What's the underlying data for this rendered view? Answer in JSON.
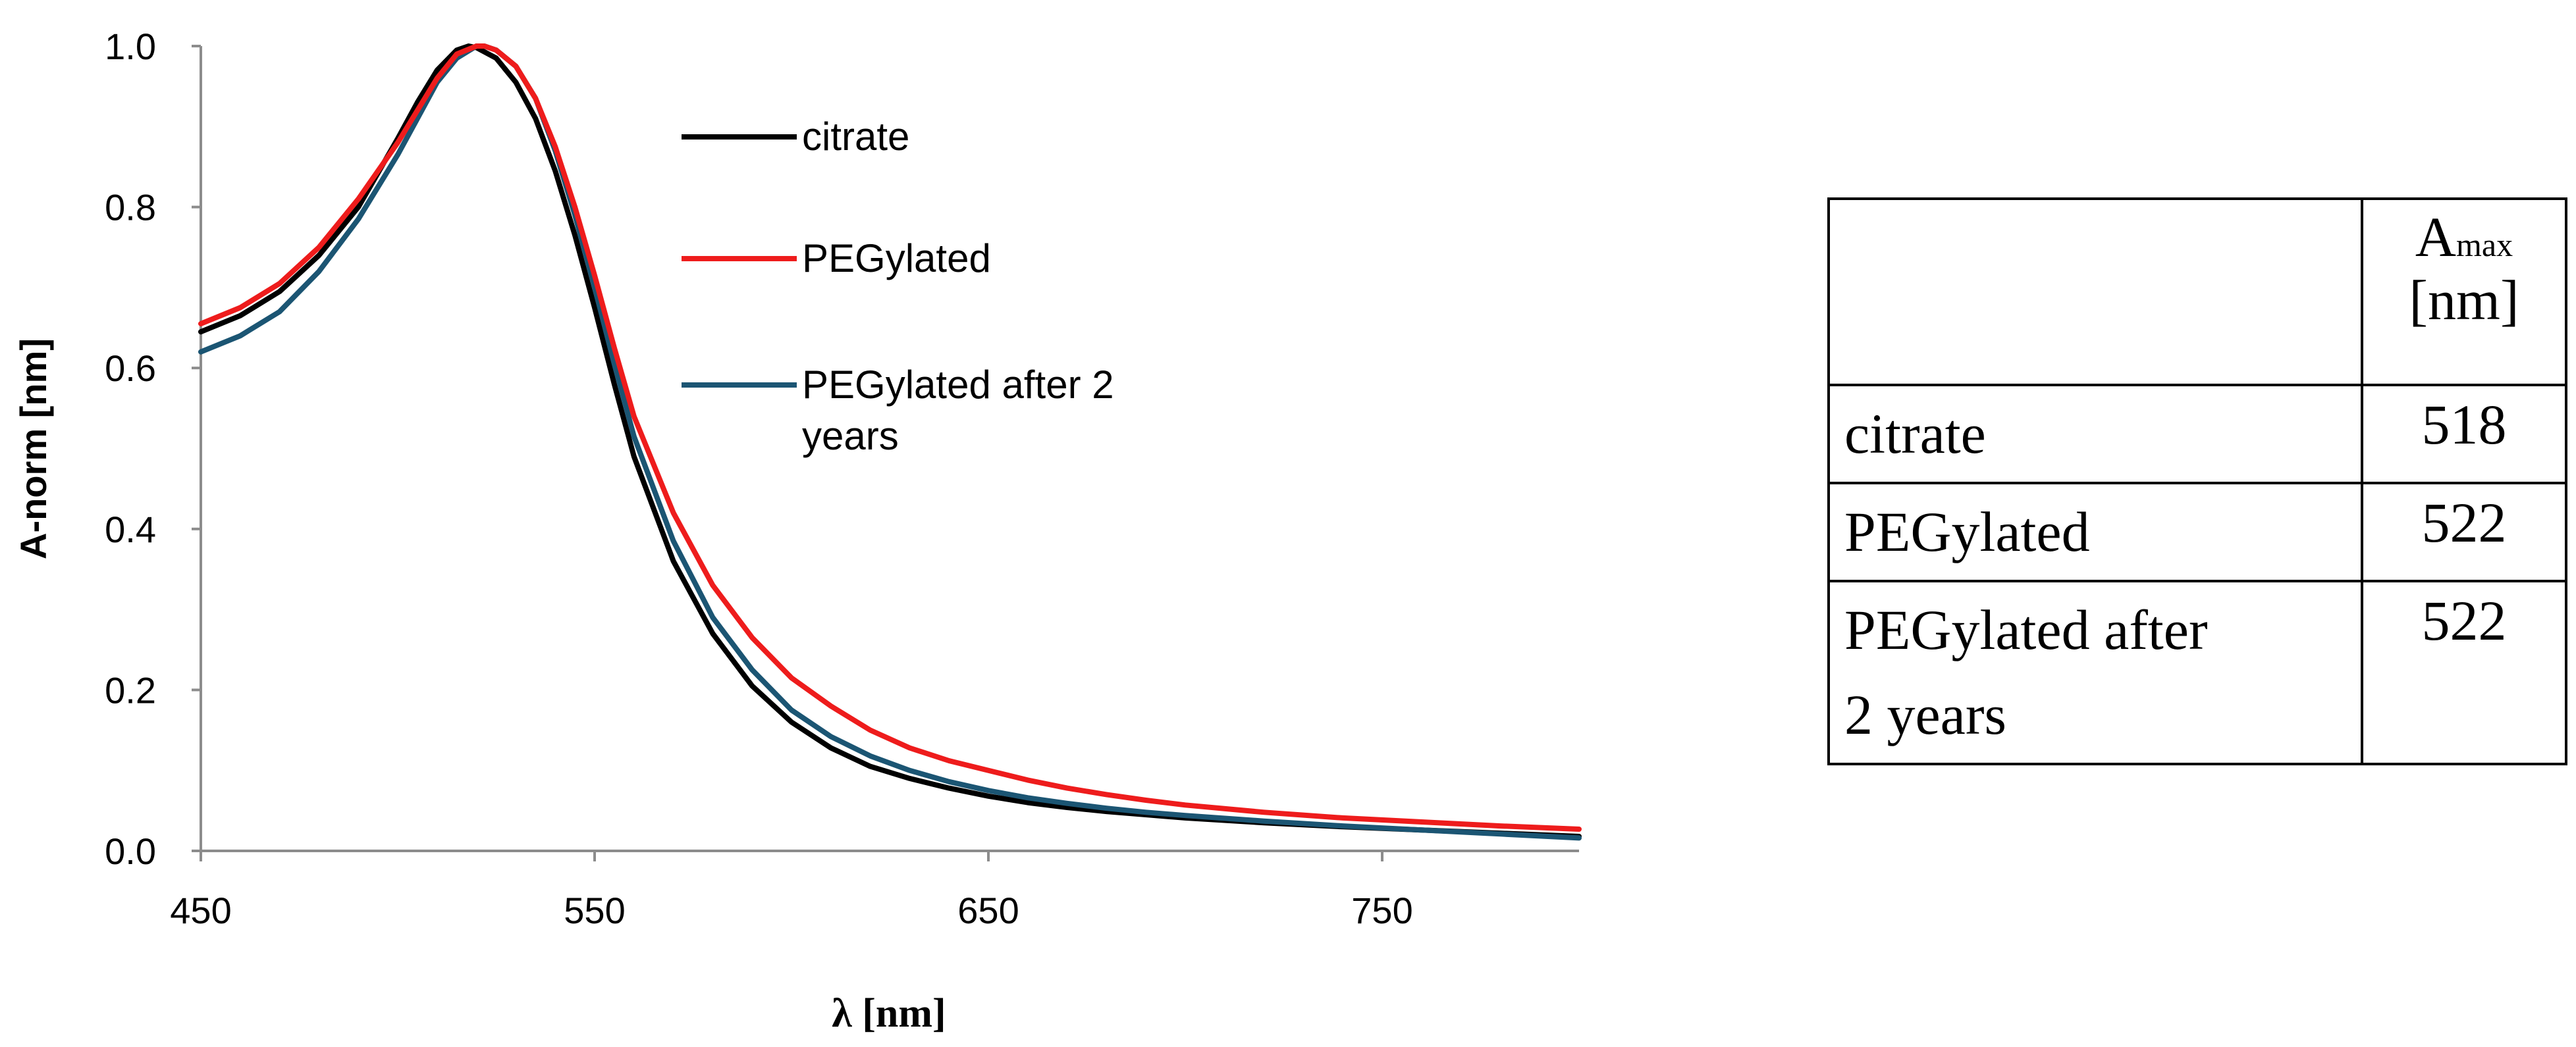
{
  "chart_data": {
    "type": "line",
    "xlabel": "λ [nm]",
    "ylabel": "A-norm [nm]",
    "xlim": [
      450,
      800
    ],
    "ylim": [
      0,
      1.0
    ],
    "xticks": [
      "450",
      "550",
      "650",
      "750"
    ],
    "xtick_values": [
      450,
      550,
      650,
      750
    ],
    "yticks": [
      "0.0",
      "0.2",
      "0.4",
      "0.6",
      "0.8",
      "1.0"
    ],
    "ytick_values": [
      0,
      0.2,
      0.4,
      0.6,
      0.8,
      1.0
    ],
    "legend_position": "top-right inside plot",
    "series": [
      {
        "name": "citrate",
        "color": "#000000",
        "x": [
          450,
          460,
          470,
          480,
          490,
          500,
          505,
          510,
          515,
          518,
          520,
          525,
          530,
          535,
          540,
          545,
          550,
          555,
          560,
          570,
          580,
          590,
          600,
          610,
          620,
          630,
          640,
          650,
          660,
          670,
          680,
          690,
          700,
          720,
          740,
          760,
          780,
          800
        ],
        "y": [
          0.645,
          0.665,
          0.695,
          0.74,
          0.8,
          0.885,
          0.93,
          0.97,
          0.995,
          1.0,
          0.998,
          0.985,
          0.955,
          0.91,
          0.845,
          0.765,
          0.675,
          0.58,
          0.49,
          0.36,
          0.27,
          0.205,
          0.16,
          0.128,
          0.105,
          0.09,
          0.078,
          0.068,
          0.06,
          0.054,
          0.049,
          0.045,
          0.041,
          0.035,
          0.03,
          0.026,
          0.022,
          0.018
        ]
      },
      {
        "name": "PEGylated",
        "color": "#ee1c1c",
        "x": [
          450,
          460,
          470,
          480,
          490,
          500,
          505,
          510,
          515,
          520,
          522,
          525,
          530,
          535,
          540,
          545,
          550,
          555,
          560,
          570,
          580,
          590,
          600,
          610,
          620,
          630,
          640,
          650,
          660,
          670,
          680,
          690,
          700,
          720,
          740,
          760,
          780,
          800
        ],
        "y": [
          0.655,
          0.675,
          0.705,
          0.75,
          0.81,
          0.88,
          0.92,
          0.96,
          0.99,
          1.0,
          1.0,
          0.995,
          0.975,
          0.935,
          0.875,
          0.8,
          0.715,
          0.625,
          0.54,
          0.42,
          0.33,
          0.265,
          0.215,
          0.18,
          0.15,
          0.128,
          0.112,
          0.1,
          0.088,
          0.078,
          0.07,
          0.063,
          0.057,
          0.048,
          0.041,
          0.036,
          0.031,
          0.027
        ]
      },
      {
        "name": "PEGylated after 2 years",
        "color": "#1b5573",
        "x": [
          450,
          460,
          470,
          480,
          490,
          500,
          505,
          510,
          515,
          520,
          522,
          525,
          530,
          535,
          540,
          545,
          550,
          555,
          560,
          570,
          580,
          590,
          600,
          610,
          620,
          630,
          640,
          650,
          660,
          670,
          680,
          690,
          700,
          720,
          740,
          760,
          780,
          800
        ],
        "y": [
          0.62,
          0.64,
          0.67,
          0.72,
          0.785,
          0.865,
          0.91,
          0.955,
          0.985,
          1.0,
          1.0,
          0.995,
          0.975,
          0.935,
          0.87,
          0.79,
          0.7,
          0.605,
          0.515,
          0.385,
          0.29,
          0.225,
          0.175,
          0.142,
          0.118,
          0.1,
          0.086,
          0.075,
          0.066,
          0.059,
          0.053,
          0.048,
          0.044,
          0.037,
          0.031,
          0.026,
          0.021,
          0.016
        ]
      }
    ]
  },
  "table": {
    "header_symbol": "A",
    "header_sub": "max",
    "header_unit": "[nm]",
    "rows": [
      {
        "name": "citrate",
        "value": "518"
      },
      {
        "name": "PEGylated",
        "value": "522"
      },
      {
        "name": "PEGylated after\n2 years",
        "value": "522"
      }
    ]
  }
}
